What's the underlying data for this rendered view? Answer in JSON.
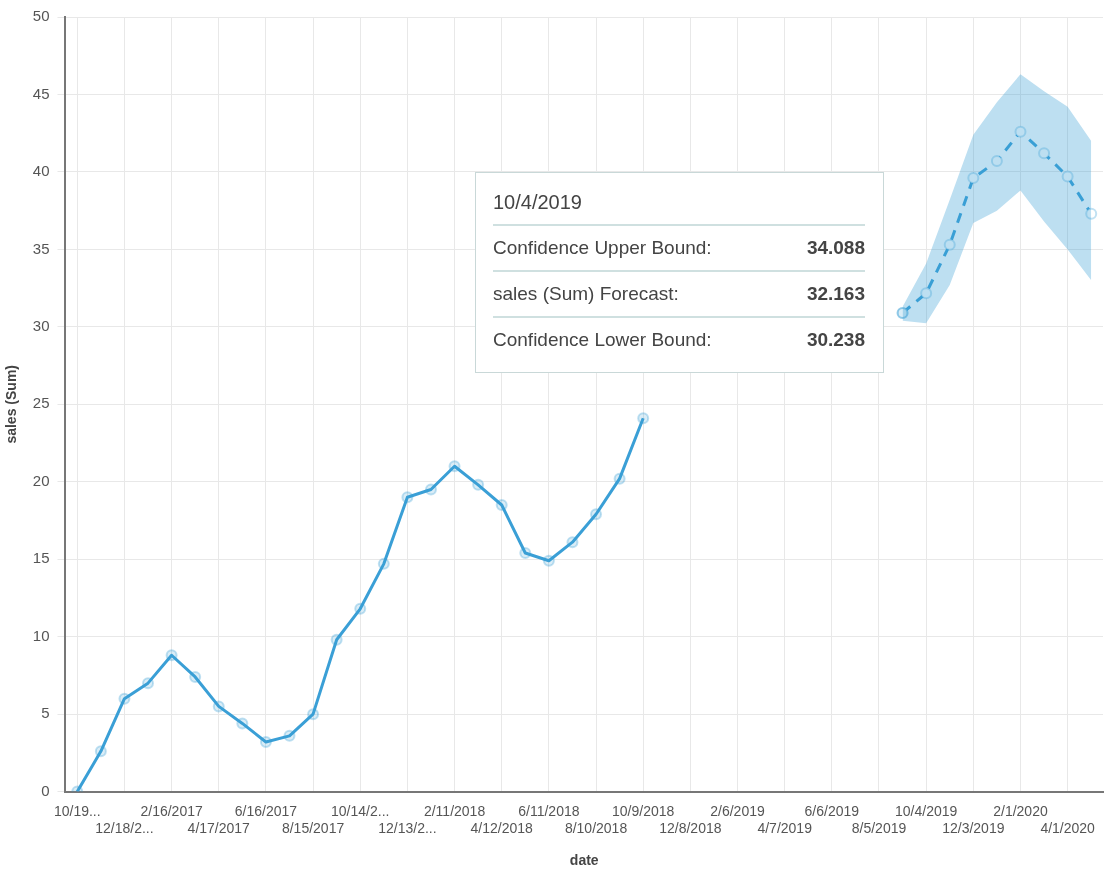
{
  "chart_data": {
    "type": "line",
    "xlabel": "date",
    "ylabel": "sales (Sum)",
    "categories": [
      "10/19...",
      null,
      "12/18/2...",
      null,
      "2/16/2017",
      null,
      "4/17/2017",
      null,
      "6/16/2017",
      null,
      "8/15/2017",
      null,
      "10/14/2...",
      null,
      "12/13/2...",
      null,
      "2/11/2018",
      null,
      "4/12/2018",
      null,
      "6/11/2018",
      null,
      "8/10/2018",
      null,
      "10/9/2018",
      null,
      "12/8/2018",
      null,
      "2/6/2019",
      null,
      "4/7/2019",
      null,
      "6/6/2019",
      null,
      "8/5/2019",
      null,
      "10/4/2019",
      null,
      "12/3/2019",
      null,
      "2/1/2020",
      null,
      "4/1/2020",
      null
    ],
    "series": [
      {
        "color": "#3a9fd6",
        "line_style": "solid",
        "values": [
          0,
          2.6,
          6.0,
          7.0,
          8.8,
          7.4,
          5.5,
          4.4,
          3.2,
          3.6,
          5.0,
          9.8,
          11.8,
          14.7,
          19.0,
          19.5,
          21.0,
          19.8,
          18.5,
          15.4,
          14.9,
          16.1,
          17.9,
          20.2,
          24.1,
          null,
          null,
          null,
          null,
          null,
          null,
          null,
          null,
          null,
          null,
          30.9,
          null,
          null,
          null,
          null,
          null,
          null,
          null,
          null
        ]
      },
      {
        "color": "#3a9fd6",
        "line_style": "dashed",
        "values": [
          null,
          null,
          null,
          null,
          null,
          null,
          null,
          null,
          null,
          null,
          null,
          null,
          null,
          null,
          null,
          null,
          null,
          null,
          null,
          null,
          null,
          null,
          null,
          null,
          null,
          null,
          null,
          null,
          null,
          null,
          null,
          null,
          null,
          null,
          null,
          30.9,
          32.163,
          35.3,
          39.6,
          40.7,
          42.6,
          41.2,
          39.7,
          37.3
        ],
        "lower": [
          null,
          null,
          null,
          null,
          null,
          null,
          null,
          null,
          null,
          null,
          null,
          null,
          null,
          null,
          null,
          null,
          null,
          null,
          null,
          null,
          null,
          null,
          null,
          null,
          null,
          null,
          null,
          null,
          null,
          null,
          null,
          null,
          null,
          null,
          null,
          30.4,
          30.238,
          32.7,
          36.7,
          37.5,
          38.8,
          36.8,
          35.0,
          33.0
        ],
        "upper": [
          null,
          null,
          null,
          null,
          null,
          null,
          null,
          null,
          null,
          null,
          null,
          null,
          null,
          null,
          null,
          null,
          null,
          null,
          null,
          null,
          null,
          null,
          null,
          null,
          null,
          null,
          null,
          null,
          null,
          null,
          null,
          null,
          null,
          null,
          null,
          31.3,
          34.088,
          38.2,
          42.4,
          44.5,
          46.3,
          45.2,
          44.2,
          42.0
        ]
      }
    ],
    "ylim": [
      0,
      50
    ],
    "yticks": [
      0,
      5,
      10,
      15,
      20,
      25,
      30,
      35,
      40,
      45,
      50
    ],
    "grid": true,
    "marker": "circle",
    "annotations": [
      "10/4/2019",
      "Confidence Upper Bound:",
      "34.088",
      "sales (Sum) Forecast:",
      "32.163",
      "Confidence Lower Bound:",
      "30.238"
    ]
  }
}
